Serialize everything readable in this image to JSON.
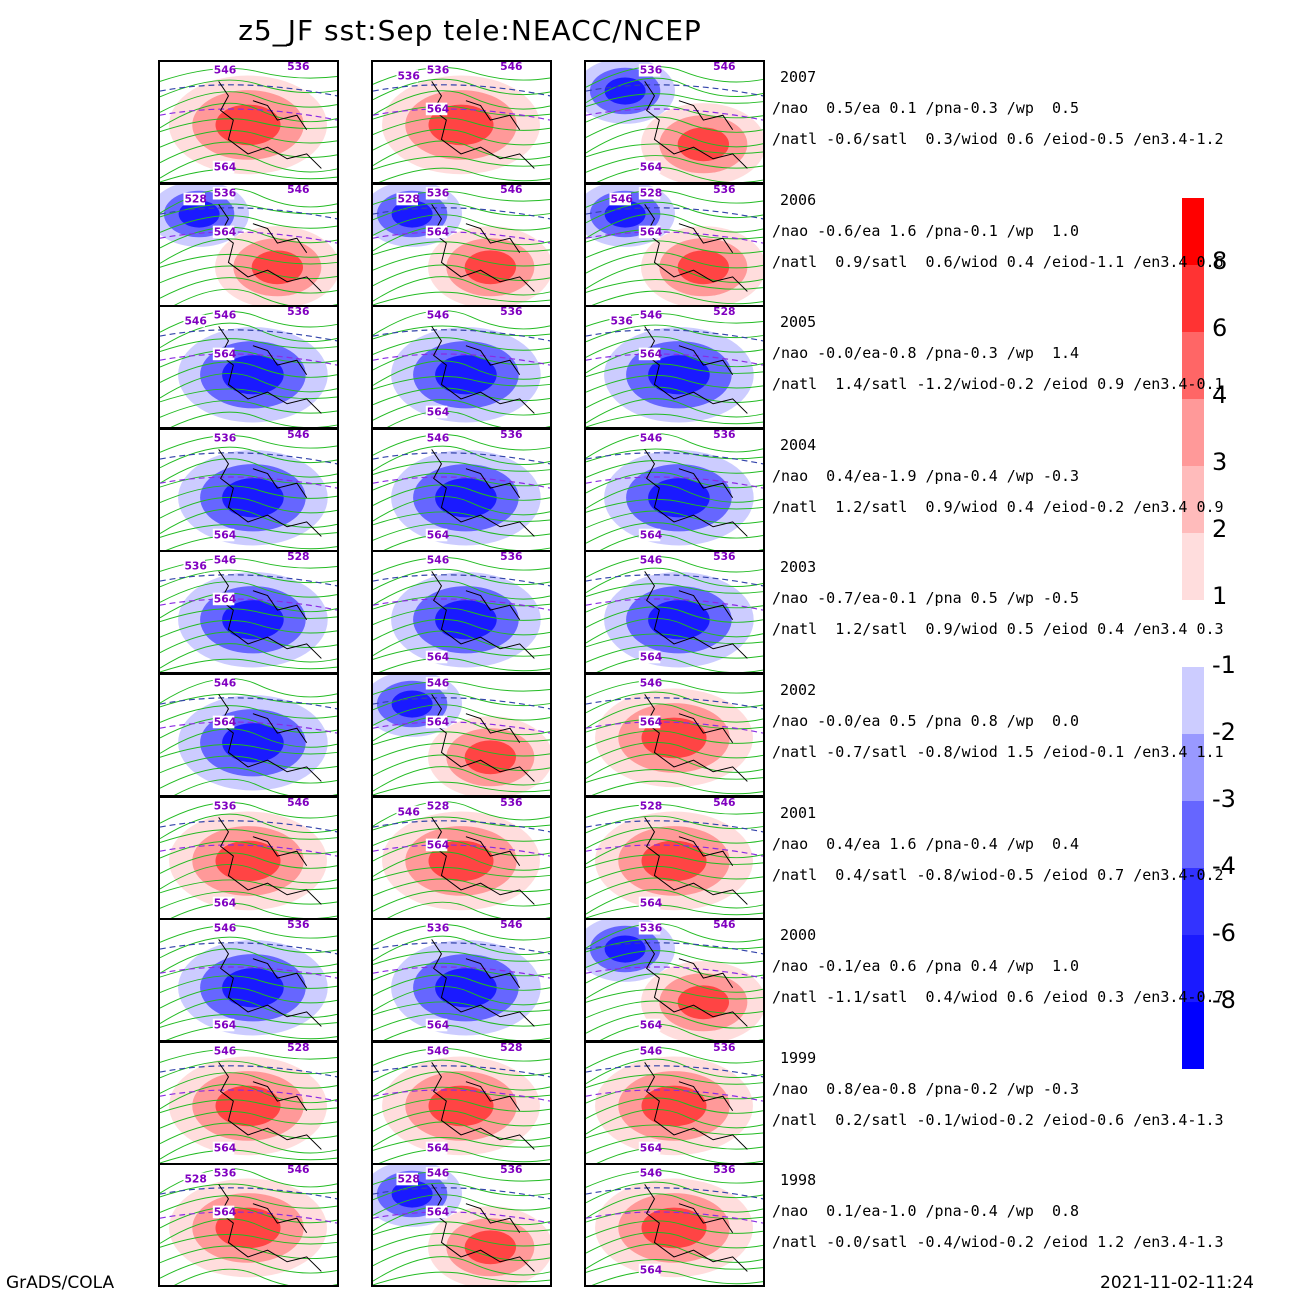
{
  "title": "z5_JF  sst:Sep  tele:NEACC/NCEP",
  "footer": {
    "left": "GrADS/COLA",
    "right": "2021-11-02-11:24"
  },
  "colorbar": {
    "positive": [
      {
        "label": "8",
        "color": "#ff0000"
      },
      {
        "label": "6",
        "color": "#ff3333"
      },
      {
        "label": "4",
        "color": "#ff6666"
      },
      {
        "label": "3",
        "color": "#ff9999"
      },
      {
        "label": "2",
        "color": "#ffbbbb"
      },
      {
        "label": "1",
        "color": "#ffdddd"
      }
    ],
    "negative": [
      {
        "label": "-1",
        "color": "#ccccff"
      },
      {
        "label": "-2",
        "color": "#9999ff"
      },
      {
        "label": "-3",
        "color": "#6666ff"
      },
      {
        "label": "-4",
        "color": "#3333ff"
      },
      {
        "label": "-6",
        "color": "#1a1aff"
      },
      {
        "label": "-8",
        "color": "#0000ff"
      }
    ]
  },
  "rows": [
    {
      "year": "2007",
      "line1": "/nao  0.5/ea 0.1 /pna-0.3 /wp  0.5",
      "line2": "/natl -0.6/satl  0.3/wiod 0.6 /eiod-0.5 /en3.4-1.2",
      "panels": [
        {
          "anom": "pos",
          "labels": [
            "546",
            "536",
            "564"
          ]
        },
        {
          "anom": "pos",
          "labels": [
            "536",
            "546",
            "536",
            "564"
          ]
        },
        {
          "anom": "mixed",
          "labels": [
            "536",
            "546",
            "564"
          ]
        }
      ]
    },
    {
      "year": "2006",
      "line1": "/nao -0.6/ea 1.6 /pna-0.1 /wp  1.0",
      "line2": "/natl  0.9/satl  0.6/wiod 0.4 /eiod-1.1 /en3.4 0.6",
      "panels": [
        {
          "anom": "mixed",
          "labels": [
            "536",
            "546",
            "528",
            "564"
          ]
        },
        {
          "anom": "mixed",
          "labels": [
            "536",
            "546",
            "528",
            "564"
          ]
        },
        {
          "anom": "mixed",
          "labels": [
            "528",
            "536",
            "546",
            "564"
          ]
        }
      ]
    },
    {
      "year": "2005",
      "line1": "/nao -0.0/ea-0.8 /pna-0.3 /wp  1.4",
      "line2": "/natl  1.4/satl -1.2/wiod-0.2 /eiod 0.9 /en3.4-0.1",
      "panels": [
        {
          "anom": "neg",
          "labels": [
            "546",
            "536",
            "546",
            "564"
          ]
        },
        {
          "anom": "neg",
          "labels": [
            "546",
            "536",
            "564"
          ]
        },
        {
          "anom": "neg",
          "labels": [
            "546",
            "528",
            "536",
            "564"
          ]
        }
      ]
    },
    {
      "year": "2004",
      "line1": "/nao  0.4/ea-1.9 /pna-0.4 /wp -0.3",
      "line2": "/natl  1.2/satl  0.9/wiod 0.4 /eiod-0.2 /en3.4 0.9",
      "panels": [
        {
          "anom": "neg",
          "labels": [
            "536",
            "546",
            "564"
          ]
        },
        {
          "anom": "neg",
          "labels": [
            "546",
            "536",
            "564"
          ]
        },
        {
          "anom": "neg",
          "labels": [
            "546",
            "536",
            "564"
          ]
        }
      ]
    },
    {
      "year": "2003",
      "line1": "/nao -0.7/ea-0.1 /pna 0.5 /wp -0.5",
      "line2": "/natl  1.2/satl  0.9/wiod 0.5 /eiod 0.4 /en3.4 0.3",
      "panels": [
        {
          "anom": "neg",
          "labels": [
            "546",
            "528",
            "536",
            "564"
          ]
        },
        {
          "anom": "neg",
          "labels": [
            "546",
            "536",
            "564"
          ]
        },
        {
          "anom": "neg",
          "labels": [
            "546",
            "536",
            "564"
          ]
        }
      ]
    },
    {
      "year": "2002",
      "line1": "/nao -0.0/ea 0.5 /pna 0.8 /wp  0.0",
      "line2": "/natl -0.7/satl -0.8/wiod 1.5 /eiod-0.1 /en3.4 1.1",
      "panels": [
        {
          "anom": "neg",
          "labels": [
            "546",
            "564"
          ]
        },
        {
          "anom": "mixed",
          "labels": [
            "546",
            "564"
          ]
        },
        {
          "anom": "pos",
          "labels": [
            "546",
            "564"
          ]
        }
      ]
    },
    {
      "year": "2001",
      "line1": "/nao  0.4/ea 1.6 /pna-0.4 /wp  0.4",
      "line2": "/natl  0.4/satl -0.8/wiod-0.5 /eiod 0.7 /en3.4-0.2",
      "panels": [
        {
          "anom": "pos",
          "labels": [
            "536",
            "546",
            "564"
          ]
        },
        {
          "anom": "pos",
          "labels": [
            "528",
            "536",
            "546",
            "564"
          ]
        },
        {
          "anom": "pos",
          "labels": [
            "528",
            "546",
            "564"
          ]
        }
      ]
    },
    {
      "year": "2000",
      "line1": "/nao -0.1/ea 0.6 /pna 0.4 /wp  1.0",
      "line2": "/natl -1.1/satl  0.4/wiod 0.6 /eiod 0.3 /en3.4-0.7",
      "panels": [
        {
          "anom": "neg",
          "labels": [
            "546",
            "536",
            "564"
          ]
        },
        {
          "anom": "neg",
          "labels": [
            "536",
            "546",
            "564"
          ]
        },
        {
          "anom": "mixed",
          "labels": [
            "536",
            "546",
            "564"
          ]
        }
      ]
    },
    {
      "year": "1999",
      "line1": "/nao  0.8/ea-0.8 /pna-0.2 /wp -0.3",
      "line2": "/natl  0.2/satl -0.1/wiod-0.2 /eiod-0.6 /en3.4-1.3",
      "panels": [
        {
          "anom": "pos",
          "labels": [
            "546",
            "528",
            "564"
          ]
        },
        {
          "anom": "pos",
          "labels": [
            "546",
            "528",
            "564"
          ]
        },
        {
          "anom": "pos",
          "labels": [
            "546",
            "536",
            "564"
          ]
        }
      ]
    },
    {
      "year": "1998",
      "line1": "/nao  0.1/ea-1.0 /pna-0.4 /wp  0.8",
      "line2": "/natl -0.0/satl -0.4/wiod-0.2 /eiod 1.2 /en3.4-1.3",
      "panels": [
        {
          "anom": "pos",
          "labels": [
            "536",
            "546",
            "528",
            "564"
          ]
        },
        {
          "anom": "mixed",
          "labels": [
            "546",
            "536",
            "528",
            "564"
          ]
        },
        {
          "anom": "pos",
          "labels": [
            "546",
            "536",
            "564"
          ]
        }
      ]
    }
  ]
}
